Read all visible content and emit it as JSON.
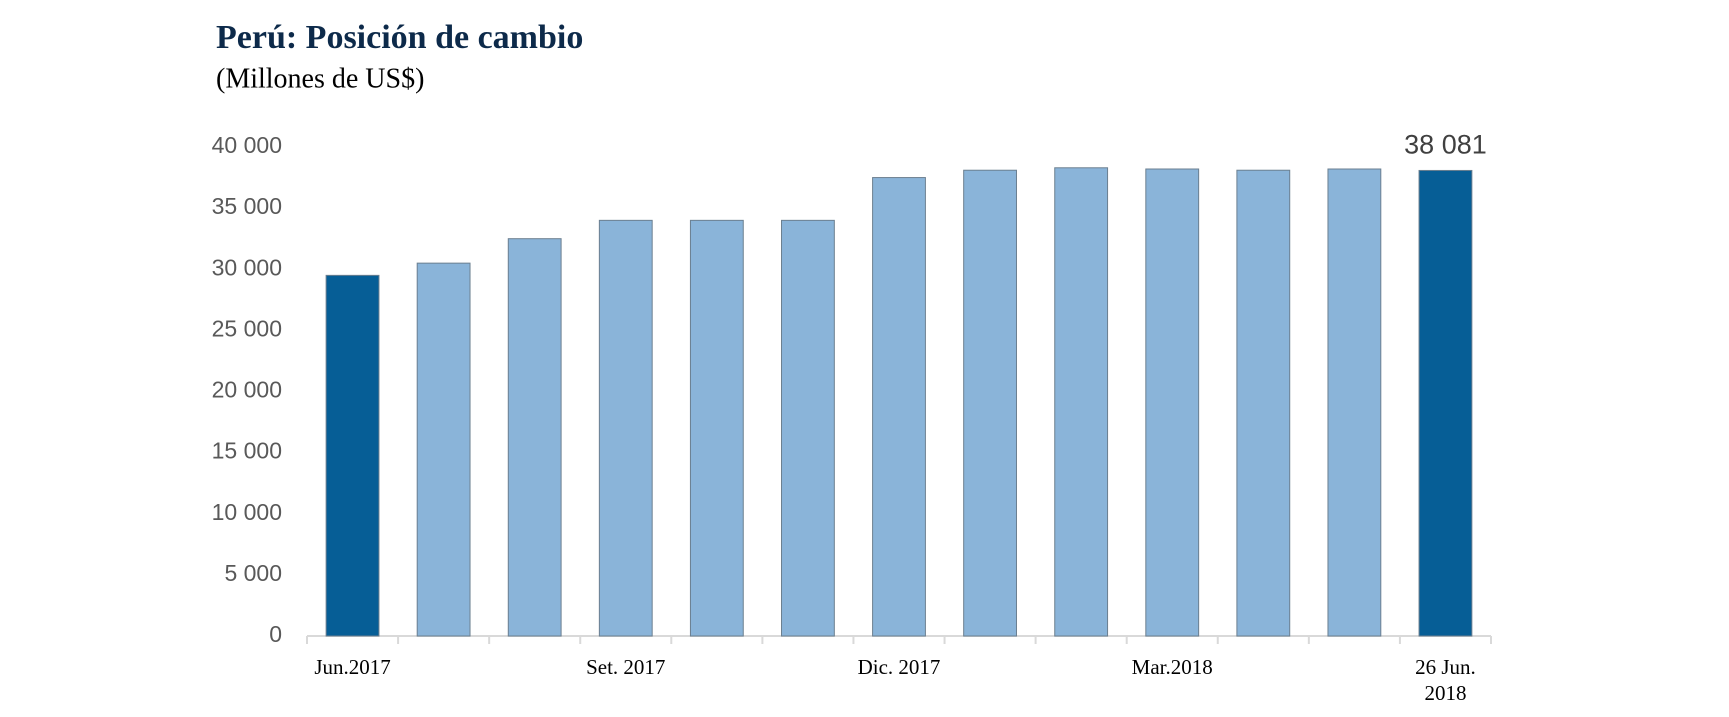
{
  "chart_data": {
    "type": "bar",
    "title": "Perú: Posición de cambio",
    "subtitle": "(Millones de US$)",
    "categories": [
      "Jun.2017",
      null,
      null,
      "Set. 2017",
      null,
      null,
      "Dic. 2017",
      null,
      null,
      "Mar.2018",
      null,
      null,
      "26 Jun. 2018"
    ],
    "values": [
      29500,
      30500,
      32500,
      34000,
      34000,
      34000,
      37500,
      38100,
      38300,
      38200,
      38100,
      38200,
      38081
    ],
    "value_labels": [
      null,
      null,
      null,
      null,
      null,
      null,
      null,
      null,
      null,
      null,
      null,
      null,
      "38 081"
    ],
    "colors": [
      "#065e96",
      "#8ab4d9",
      "#8ab4d9",
      "#8ab4d9",
      "#8ab4d9",
      "#8ab4d9",
      "#8ab4d9",
      "#8ab4d9",
      "#8ab4d9",
      "#8ab4d9",
      "#8ab4d9",
      "#8ab4d9",
      "#065e96"
    ],
    "ylim": [
      0,
      40000
    ],
    "yticks": [
      0,
      {
        "value": 5000,
        "label": "5 000"
      },
      {
        "value": 10000,
        "label": "10 000"
      },
      {
        "value": 15000,
        "label": "15 000"
      },
      {
        "value": 20000,
        "label": "20 000"
      },
      {
        "value": 25000,
        "label": "25 000"
      },
      {
        "value": 30000,
        "label": "30 000"
      },
      {
        "value": 35000,
        "label": "35 000"
      },
      {
        "value": 40000,
        "label": "40 000"
      }
    ],
    "grid": false
  }
}
